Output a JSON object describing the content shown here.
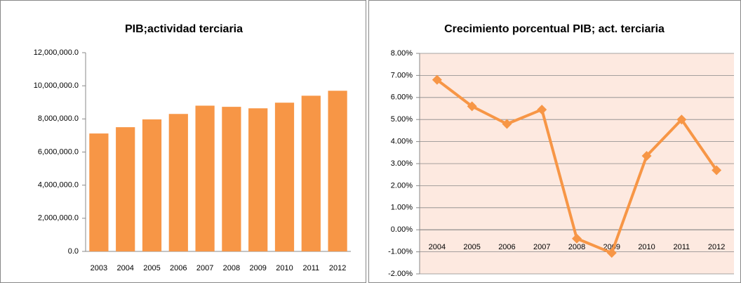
{
  "chart_data": [
    {
      "type": "bar",
      "title": "PIB;actividad terciaria",
      "categories": [
        "2003",
        "2004",
        "2005",
        "2006",
        "2007",
        "2008",
        "2009",
        "2010",
        "2011",
        "2012"
      ],
      "values": [
        7120000,
        7500000,
        7970000,
        8300000,
        8800000,
        8730000,
        8640000,
        8980000,
        9400000,
        9700000
      ],
      "color": "#f79646",
      "ylim": [
        0,
        12000000
      ],
      "yticks": [
        {
          "value": 0,
          "label": "0.0"
        },
        {
          "value": 2000000,
          "label": "2,000,000.0"
        },
        {
          "value": 4000000,
          "label": "4,000,000.0"
        },
        {
          "value": 6000000,
          "label": "6,000,000.0"
        },
        {
          "value": 8000000,
          "label": "8,000,000.0"
        },
        {
          "value": 10000000,
          "label": "10,000,000.0"
        },
        {
          "value": 12000000,
          "label": "12,000,000.0"
        }
      ],
      "grid": false
    },
    {
      "type": "line",
      "title": "Crecimiento porcentual PIB; act. terciaria",
      "categories": [
        "2004",
        "2005",
        "2006",
        "2007",
        "2008",
        "2009",
        "2010",
        "2011",
        "2012"
      ],
      "values": [
        6.8,
        5.6,
        4.8,
        5.45,
        -0.4,
        -1.05,
        3.35,
        5.0,
        2.7
      ],
      "color": "#f79646",
      "ylim": [
        -2,
        8
      ],
      "yticks": [
        {
          "value": -2,
          "label": "-2.00%"
        },
        {
          "value": -1,
          "label": "-1.00%"
        },
        {
          "value": 0,
          "label": "0.00%"
        },
        {
          "value": 1,
          "label": "1.00%"
        },
        {
          "value": 2,
          "label": "2.00%"
        },
        {
          "value": 3,
          "label": "3.00%"
        },
        {
          "value": 4,
          "label": "4.00%"
        },
        {
          "value": 5,
          "label": "5.00%"
        },
        {
          "value": 6,
          "label": "6.00%"
        },
        {
          "value": 7,
          "label": "7.00%"
        },
        {
          "value": 8,
          "label": "8.00%"
        }
      ],
      "grid": true
    }
  ]
}
